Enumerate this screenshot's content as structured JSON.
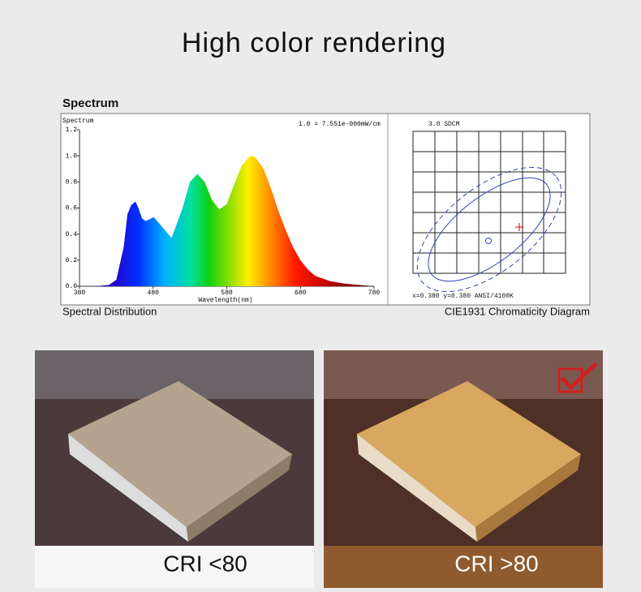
{
  "title": "High color rendering",
  "section_title": "Spectrum",
  "chart_data": {
    "type": "area",
    "title": "Spectrum",
    "annotation": "1.0 = 7.551e-000mW/cm",
    "xlabel": "Wavelength(nm)",
    "x": [
      380,
      400,
      420,
      430,
      440,
      445,
      450,
      456,
      460,
      465,
      470,
      481,
      490,
      505,
      520,
      530,
      540,
      550,
      560,
      570,
      580,
      590,
      600,
      610,
      615,
      620,
      630,
      640,
      650,
      660,
      670,
      680,
      690,
      700,
      720,
      740,
      760,
      780
    ],
    "values": [
      0,
      0,
      0.01,
      0.05,
      0.3,
      0.55,
      0.62,
      0.65,
      0.6,
      0.52,
      0.5,
      0.53,
      0.47,
      0.37,
      0.6,
      0.8,
      0.86,
      0.8,
      0.66,
      0.59,
      0.63,
      0.78,
      0.92,
      0.99,
      1.0,
      0.98,
      0.9,
      0.75,
      0.58,
      0.43,
      0.3,
      0.2,
      0.13,
      0.08,
      0.04,
      0.02,
      0.01,
      0
    ],
    "xlim": [
      380,
      780
    ],
    "xticks": [
      380,
      480,
      580,
      680,
      780
    ],
    "ylim": [
      0,
      1.2
    ],
    "yticks": [
      {
        "value": 0,
        "label": "0.0"
      },
      0.2,
      0.4,
      0.6,
      0.8,
      {
        "value": 1,
        "label": "1.0"
      },
      1.2
    ]
  },
  "spectrum_caption": "Spectral Distribution",
  "cie": {
    "label": "3.0 SDCM",
    "coords": "x=0.380 y=0.380 ANSI/4100K",
    "caption": "CIE1931 Chromaticity Diagram"
  },
  "photos": [
    {
      "label": "CRI <80"
    },
    {
      "label": "CRI >80"
    }
  ]
}
